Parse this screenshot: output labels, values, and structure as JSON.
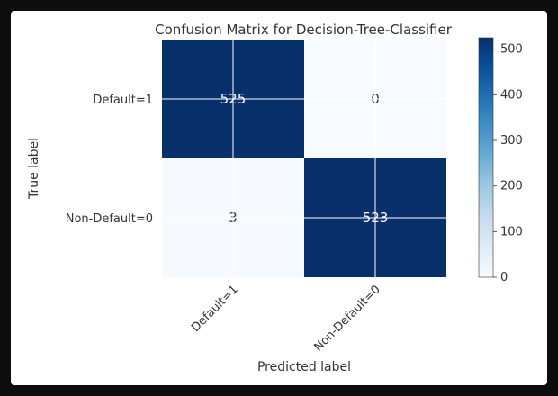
{
  "chart_data": {
    "type": "heatmap",
    "title": "Confusion Matrix for Decision-Tree-Classifier",
    "xlabel": "Predicted label",
    "ylabel": "True label",
    "row_labels": [
      "Default=1",
      "Non-Default=0"
    ],
    "col_labels": [
      "Default=1",
      "Non-Default=0"
    ],
    "values": [
      [
        525,
        0
      ],
      [
        3,
        523
      ]
    ],
    "colormap": "Blues",
    "colorbar": {
      "min": 0,
      "max": 525,
      "ticks": [
        0,
        100,
        200,
        300,
        400,
        500
      ]
    },
    "grid": true
  },
  "colors": {
    "dark": "#08306b",
    "light": "#f7fbff",
    "text_dark": "#333333",
    "text_on_dark": "#ffffff"
  }
}
